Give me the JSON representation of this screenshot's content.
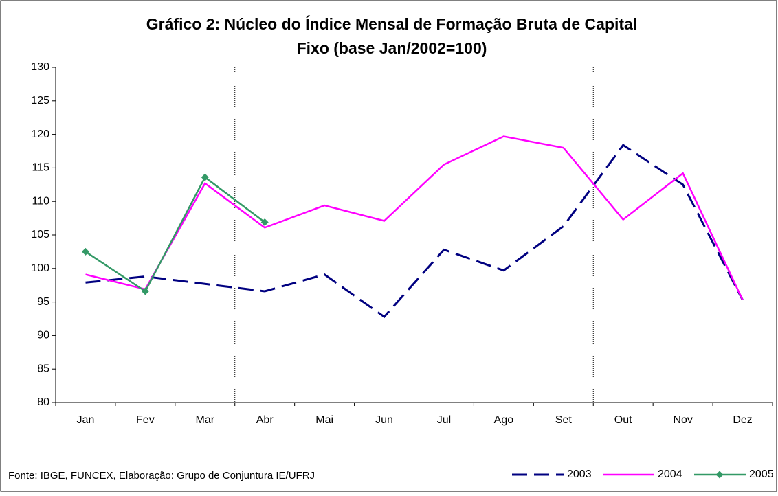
{
  "chart_data": {
    "type": "line",
    "title": [
      "Gráfico 2: Núcleo do Índice Mensal de Formação Bruta de Capital",
      "Fixo (base Jan/2002=100)"
    ],
    "source": "Fonte: IBGE, FUNCEX, Elaboração: Grupo de Conjuntura IE/UFRJ",
    "categories": [
      "Jan",
      "Fev",
      "Mar",
      "Abr",
      "Mai",
      "Jun",
      "Jul",
      "Ago",
      "Set",
      "Out",
      "Nov",
      "Dez"
    ],
    "series": [
      {
        "name": "2003",
        "color": "#000080",
        "dash": true,
        "marker": false,
        "values": [
          97.9,
          98.8,
          97.7,
          96.6,
          99.1,
          92.8,
          102.8,
          99.7,
          106.3,
          118.4,
          112.5,
          95.3
        ]
      },
      {
        "name": "2004",
        "color": "#ff00ff",
        "dash": false,
        "marker": false,
        "values": [
          99.1,
          96.9,
          112.7,
          106.1,
          109.4,
          107.1,
          115.5,
          119.7,
          118.0,
          107.3,
          114.2,
          95.3
        ]
      },
      {
        "name": "2005",
        "color": "#339966",
        "dash": false,
        "marker": true,
        "values": [
          102.5,
          96.6,
          113.6,
          106.9,
          null,
          null,
          null,
          null,
          null,
          null,
          null,
          null
        ]
      }
    ],
    "ylim": [
      80,
      130
    ],
    "yticks": [
      80,
      85,
      90,
      95,
      100,
      105,
      110,
      115,
      120,
      125,
      130
    ],
    "grid": false,
    "legend": "bottom-right"
  }
}
